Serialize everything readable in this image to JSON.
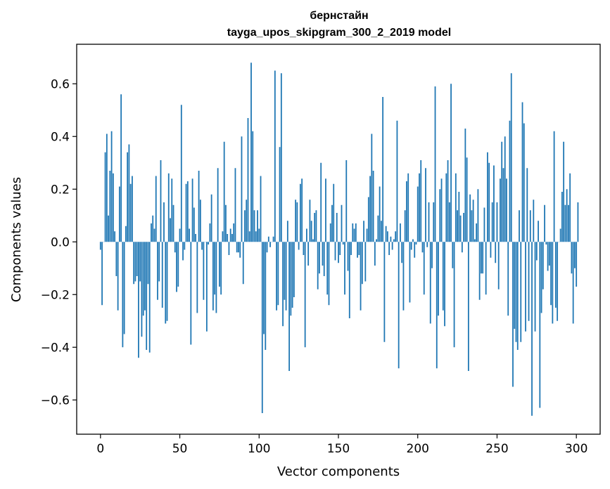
{
  "chart_data": {
    "type": "bar",
    "title": "бернстайн",
    "subtitle": "tayga_upos_skipgram_300_2_2019 model",
    "xlabel": "Vector components",
    "ylabel": "Components values",
    "xlim": [
      -15,
      315
    ],
    "ylim": [
      -0.73,
      0.75
    ],
    "xticks": [
      0,
      50,
      100,
      150,
      200,
      250,
      300
    ],
    "xtick_labels": [
      "0",
      "50",
      "100",
      "150",
      "200",
      "250",
      "300"
    ],
    "yticks": [
      -0.6,
      -0.4,
      -0.2,
      0.0,
      0.2,
      0.4,
      0.6
    ],
    "ytick_labels": [
      "−0.6",
      "−0.4",
      "−0.2",
      "0.0",
      "0.2",
      "0.4",
      "0.6"
    ],
    "bar_color": "#1f77b4",
    "grid": false,
    "values": [
      -0.03,
      -0.24,
      0.0,
      0.34,
      0.41,
      0.1,
      0.27,
      0.42,
      0.26,
      0.04,
      -0.13,
      -0.26,
      0.21,
      0.56,
      -0.4,
      -0.35,
      0.06,
      0.34,
      0.37,
      0.22,
      0.25,
      -0.16,
      -0.15,
      -0.13,
      -0.44,
      -0.15,
      -0.36,
      -0.28,
      -0.26,
      -0.41,
      -0.16,
      -0.42,
      0.07,
      0.1,
      0.05,
      0.25,
      -0.22,
      -0.15,
      0.31,
      -0.25,
      0.15,
      -0.31,
      -0.3,
      0.26,
      0.09,
      0.24,
      0.14,
      -0.04,
      -0.19,
      -0.17,
      0.05,
      0.52,
      -0.07,
      -0.03,
      0.22,
      0.23,
      0.05,
      -0.39,
      0.24,
      0.13,
      0.03,
      -0.27,
      0.27,
      0.16,
      -0.03,
      -0.22,
      0.0,
      -0.34,
      -0.01,
      0.07,
      0.18,
      -0.26,
      -0.2,
      -0.27,
      0.28,
      -0.17,
      -0.2,
      0.04,
      0.38,
      0.14,
      0.03,
      -0.05,
      0.05,
      0.03,
      0.07,
      0.28,
      -0.04,
      -0.04,
      -0.06,
      0.4,
      -0.16,
      0.12,
      0.16,
      0.47,
      0.04,
      0.68,
      0.42,
      0.12,
      0.04,
      0.12,
      0.05,
      0.25,
      -0.65,
      -0.35,
      -0.41,
      -0.04,
      0.02,
      -0.02,
      0.0,
      0.02,
      0.65,
      -0.26,
      -0.24,
      0.36,
      0.64,
      -0.32,
      -0.22,
      -0.26,
      0.08,
      -0.49,
      -0.28,
      -0.25,
      -0.21,
      0.16,
      0.15,
      -0.03,
      0.22,
      0.24,
      -0.05,
      -0.4,
      0.05,
      -0.09,
      0.16,
      0.08,
      0.01,
      0.11,
      0.12,
      -0.18,
      -0.12,
      0.3,
      -0.09,
      -0.13,
      0.24,
      -0.2,
      -0.24,
      0.07,
      0.14,
      0.22,
      -0.07,
      0.11,
      -0.08,
      -0.05,
      0.14,
      -0.01,
      -0.2,
      0.31,
      -0.11,
      -0.29,
      -0.05,
      0.07,
      0.05,
      0.07,
      -0.06,
      -0.05,
      -0.26,
      -0.16,
      0.08,
      -0.15,
      0.05,
      0.17,
      0.25,
      0.41,
      0.27,
      -0.09,
      0.01,
      0.1,
      0.21,
      0.08,
      0.55,
      -0.38,
      0.06,
      0.04,
      -0.05,
      0.02,
      -0.03,
      0.01,
      0.04,
      0.46,
      -0.48,
      0.07,
      -0.08,
      -0.26,
      0.12,
      0.23,
      0.26,
      -0.23,
      -0.03,
      0.01,
      -0.06,
      -0.01,
      0.21,
      0.26,
      0.31,
      -0.04,
      -0.2,
      0.28,
      -0.02,
      0.15,
      -0.31,
      -0.1,
      0.15,
      0.59,
      -0.48,
      -0.28,
      0.2,
      0.24,
      -0.26,
      -0.32,
      0.26,
      0.31,
      0.15,
      0.6,
      -0.1,
      -0.4,
      0.26,
      0.12,
      0.19,
      0.1,
      -0.04,
      0.11,
      0.43,
      0.32,
      -0.49,
      0.18,
      0.12,
      0.16,
      0.01,
      0.07,
      0.2,
      -0.22,
      -0.12,
      -0.12,
      0.13,
      -0.2,
      0.34,
      0.3,
      -0.06,
      0.15,
      0.29,
      -0.08,
      0.15,
      -0.18,
      0.24,
      0.38,
      0.28,
      0.4,
      0.24,
      -0.28,
      0.46,
      0.64,
      -0.55,
      -0.33,
      -0.38,
      -0.41,
      0.12,
      -0.38,
      0.53,
      0.45,
      -0.34,
      0.28,
      -0.3,
      0.12,
      -0.66,
      0.16,
      -0.34,
      -0.07,
      0.08,
      -0.63,
      -0.27,
      -0.18,
      0.14,
      -0.01,
      -0.11,
      -0.09,
      -0.24,
      -0.31,
      0.42,
      -0.25,
      -0.3,
      0.0,
      0.05,
      0.19,
      0.38,
      0.14,
      0.2,
      0.14,
      0.26,
      -0.12,
      -0.31,
      -0.1,
      -0.17,
      0.15
    ]
  }
}
